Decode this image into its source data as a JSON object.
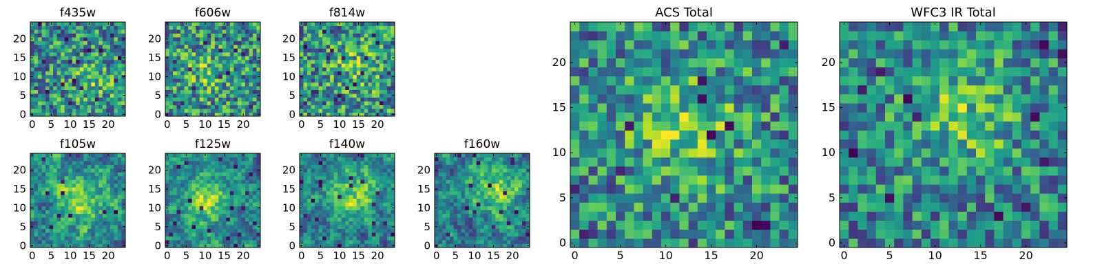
{
  "chart_data": [
    {
      "type": "heatmap",
      "title": "f435w",
      "xlim": [
        0,
        24
      ],
      "ylim": [
        0,
        24
      ],
      "xticks": [
        "0",
        "5",
        "10",
        "15",
        "20"
      ],
      "yticks": [
        "0",
        "5",
        "10",
        "15",
        "20"
      ],
      "colormap": "viridis",
      "grid": false,
      "texture": "fine",
      "bright_center": [
        15,
        9
      ],
      "seed": 11
    },
    {
      "type": "heatmap",
      "title": "f606w",
      "xlim": [
        0,
        24
      ],
      "ylim": [
        0,
        24
      ],
      "xticks": [
        "0",
        "5",
        "10",
        "15",
        "20"
      ],
      "yticks": [
        "0",
        "5",
        "10",
        "15",
        "20"
      ],
      "colormap": "viridis",
      "grid": false,
      "texture": "fine",
      "bright_center": [
        10,
        11
      ],
      "seed": 23
    },
    {
      "type": "heatmap",
      "title": "f814w",
      "xlim": [
        0,
        24
      ],
      "ylim": [
        0,
        24
      ],
      "xticks": [
        "0",
        "5",
        "10",
        "15",
        "20"
      ],
      "yticks": [
        "0",
        "5",
        "10",
        "15",
        "20"
      ],
      "colormap": "viridis",
      "grid": false,
      "texture": "fine",
      "bright_center": [
        14,
        13
      ],
      "seed": 37
    },
    {
      "type": "heatmap",
      "title": "f105w",
      "xlim": [
        0,
        24
      ],
      "ylim": [
        0,
        24
      ],
      "xticks": [
        "0",
        "5",
        "10",
        "15",
        "20"
      ],
      "yticks": [
        "0",
        "5",
        "10",
        "15",
        "20"
      ],
      "colormap": "viridis",
      "grid": false,
      "texture": "smooth",
      "bright_center": [
        13,
        12
      ],
      "seed": 41
    },
    {
      "type": "heatmap",
      "title": "f125w",
      "xlim": [
        0,
        24
      ],
      "ylim": [
        0,
        24
      ],
      "xticks": [
        "0",
        "5",
        "10",
        "15",
        "20"
      ],
      "yticks": [
        "0",
        "5",
        "10",
        "15",
        "20"
      ],
      "colormap": "viridis",
      "grid": false,
      "texture": "smooth",
      "bright_center": [
        10,
        12
      ],
      "seed": 53
    },
    {
      "type": "heatmap",
      "title": "f140w",
      "xlim": [
        0,
        24
      ],
      "ylim": [
        0,
        24
      ],
      "xticks": [
        "0",
        "5",
        "10",
        "15",
        "20"
      ],
      "yticks": [
        "0",
        "5",
        "10",
        "15",
        "20"
      ],
      "colormap": "viridis",
      "grid": false,
      "texture": "smooth",
      "bright_center": [
        14,
        14
      ],
      "seed": 67
    },
    {
      "type": "heatmap",
      "title": "f160w",
      "xlim": [
        0,
        24
      ],
      "ylim": [
        0,
        24
      ],
      "xticks": [
        "0",
        "5",
        "10",
        "15",
        "20"
      ],
      "yticks": [
        "0",
        "5",
        "10",
        "15",
        "20"
      ],
      "colormap": "viridis",
      "grid": false,
      "texture": "smooth",
      "bright_center": [
        15,
        15
      ],
      "seed": 79
    },
    {
      "type": "heatmap",
      "title": "ACS Total",
      "xlim": [
        0,
        24
      ],
      "ylim": [
        0,
        24
      ],
      "xticks": [
        "0",
        "5",
        "10",
        "15",
        "20"
      ],
      "yticks": [
        "0",
        "5",
        "10",
        "15",
        "20"
      ],
      "colormap": "viridis",
      "grid": false,
      "texture": "blocky",
      "bright_center": [
        12,
        13
      ],
      "seed": 97
    },
    {
      "type": "heatmap",
      "title": "WFC3 IR Total",
      "xlim": [
        0,
        24
      ],
      "ylim": [
        0,
        24
      ],
      "xticks": [
        "0",
        "5",
        "10",
        "15",
        "20"
      ],
      "yticks": [
        "0",
        "5",
        "10",
        "15",
        "20"
      ],
      "colormap": "viridis",
      "grid": false,
      "texture": "blocky",
      "bright_center": [
        13,
        14
      ],
      "seed": 131
    }
  ]
}
